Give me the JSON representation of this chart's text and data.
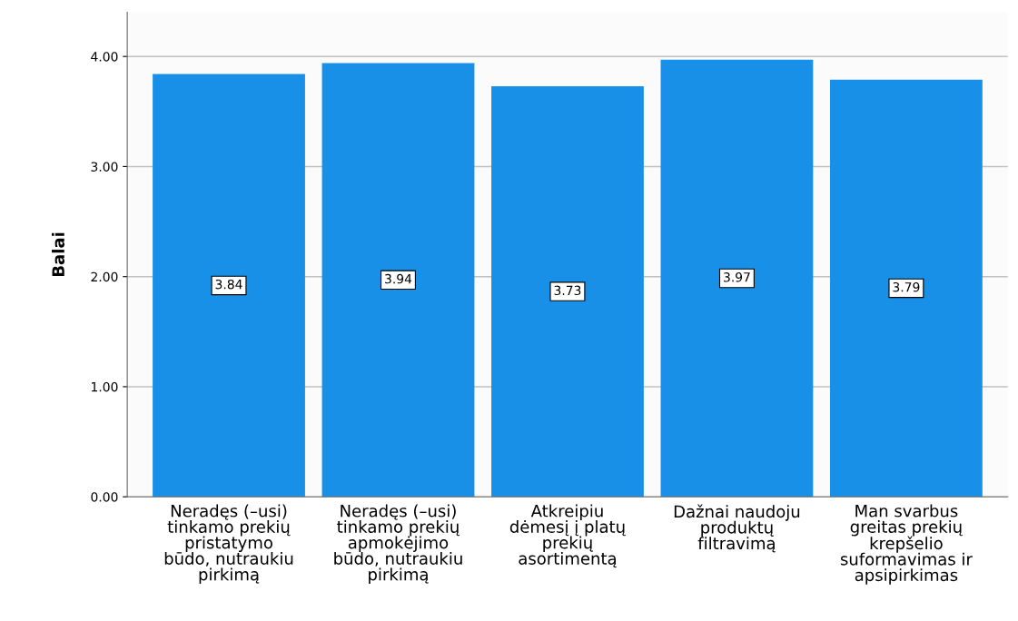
{
  "chart_data": {
    "type": "bar",
    "ylabel": "Balai",
    "categories": [
      "Neradęs (–usi)\ntinkamo prekių\npristatymo\nbūdo, nutraukiu\npirkimą",
      "Neradęs (–usi)\ntinkamo prekių\napmokėjimo\nbūdo, nutraukiu\npirkimą",
      "Atkreipiu\ndėmesį į platų\nprekių\nasortimentą",
      "Dažnai naudoju\nproduktų\nfiltravimą",
      "Man svarbus\ngreitas prekių\nkrepšelio\nsuformavimas ir\napsipirkimas"
    ],
    "values": [
      3.84,
      3.94,
      3.73,
      3.97,
      3.79
    ],
    "color": "#1990e8",
    "ylim": [
      0,
      4.4
    ],
    "yticks": [
      {
        "value": 0,
        "label": "0.00"
      },
      {
        "value": 1,
        "label": "1.00"
      },
      {
        "value": 2,
        "label": "2.00"
      },
      {
        "value": 3,
        "label": "3.00"
      },
      {
        "value": 4,
        "label": "4.00"
      }
    ],
    "grid": "y",
    "data_labels": true
  }
}
